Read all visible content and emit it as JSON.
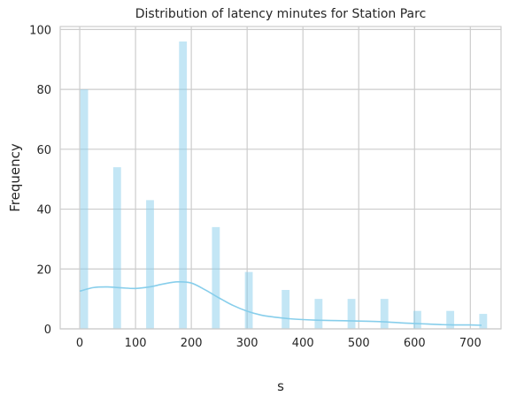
{
  "chart_data": {
    "type": "bar",
    "title": "Distribution of latency minutes for Station Parc",
    "xlabel": "s",
    "ylabel": "Frequency",
    "xlim": [
      -35,
      755
    ],
    "ylim": [
      0,
      101
    ],
    "xticks": [
      0,
      100,
      200,
      300,
      400,
      500,
      600,
      700
    ],
    "yticks": [
      0,
      20,
      40,
      60,
      80,
      100
    ],
    "grid": true,
    "bar_width": 14,
    "bar_color": "#87CEEB",
    "kde_color": "#87CEEB",
    "bars": [
      {
        "x": 8,
        "value": 80
      },
      {
        "x": 67,
        "value": 54
      },
      {
        "x": 126,
        "value": 43
      },
      {
        "x": 185,
        "value": 96
      },
      {
        "x": 244,
        "value": 34
      },
      {
        "x": 303,
        "value": 19
      },
      {
        "x": 369,
        "value": 13
      },
      {
        "x": 428,
        "value": 10
      },
      {
        "x": 487,
        "value": 10
      },
      {
        "x": 546,
        "value": 10
      },
      {
        "x": 605,
        "value": 6
      },
      {
        "x": 664,
        "value": 6
      },
      {
        "x": 723,
        "value": 5
      }
    ],
    "kde": {
      "x": [
        0,
        25,
        50,
        75,
        100,
        125,
        150,
        175,
        200,
        225,
        250,
        275,
        300,
        325,
        350,
        375,
        400,
        425,
        450,
        475,
        500,
        525,
        550,
        575,
        600,
        625,
        650,
        675,
        700,
        720
      ],
      "y": [
        12.6,
        13.8,
        14.0,
        13.7,
        13.5,
        14.0,
        15.0,
        15.7,
        15.3,
        13.0,
        10.3,
        7.8,
        5.9,
        4.6,
        3.9,
        3.4,
        3.1,
        2.9,
        2.8,
        2.7,
        2.6,
        2.5,
        2.3,
        2.0,
        1.8,
        1.6,
        1.4,
        1.3,
        1.3,
        1.2
      ]
    }
  }
}
